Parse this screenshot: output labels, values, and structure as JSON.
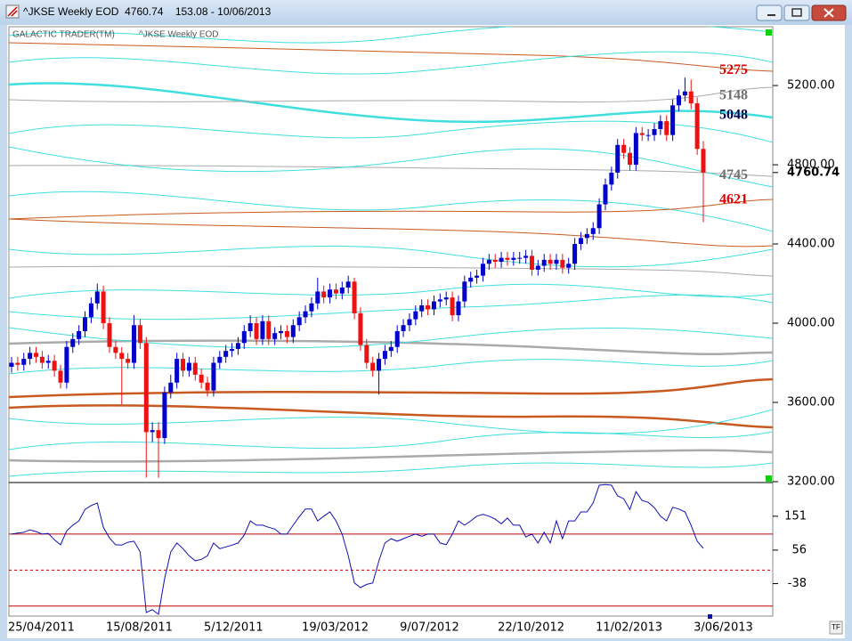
{
  "window": {
    "title": "^JKSE Weekly EOD  4760.74    153.08 - 10/06/2013",
    "button": "TF"
  },
  "chart_data": [
    {
      "type": "candlestick",
      "title": "GALACTIC TRADER(TM)",
      "subtitle": "^JKSE Weekly EOD",
      "categories": [
        "25/04/2011",
        null,
        null,
        null,
        null,
        null,
        null,
        null,
        null,
        null,
        null,
        null,
        null,
        null,
        null,
        null,
        "15/08/2011",
        null,
        null,
        null,
        null,
        null,
        null,
        null,
        null,
        null,
        null,
        null,
        null,
        null,
        null,
        null,
        "5/12/2011",
        null,
        null,
        null,
        null,
        null,
        null,
        null,
        null,
        null,
        null,
        null,
        null,
        null,
        null,
        null,
        "19/03/2012",
        null,
        null,
        null,
        null,
        null,
        null,
        null,
        null,
        null,
        null,
        null,
        null,
        null,
        null,
        null,
        "9/07/2012",
        null,
        null,
        null,
        null,
        null,
        null,
        null,
        null,
        null,
        null,
        null,
        null,
        null,
        null,
        null,
        "22/10/2012",
        null,
        null,
        null,
        null,
        null,
        null,
        null,
        null,
        null,
        null,
        null,
        null,
        null,
        null,
        null,
        "11/02/2013",
        null,
        null,
        null,
        null,
        null,
        null,
        null,
        null,
        null,
        null,
        null,
        null,
        null,
        null,
        null,
        "3/06/2013",
        null
      ],
      "open": [
        3780,
        3800,
        3790,
        3820,
        3850,
        3830,
        3800,
        3810,
        3760,
        3700,
        3880,
        3920,
        3960,
        4030,
        4100,
        4160,
        4000,
        3880,
        3850,
        3820,
        3800,
        3990,
        3900,
        3450,
        3460,
        3420,
        3650,
        3700,
        3820,
        3760,
        3800,
        3740,
        3700,
        3660,
        3800,
        3830,
        3860,
        3870,
        3900,
        3960,
        4000,
        3920,
        4010,
        3920,
        3950,
        3960,
        3930,
        3990,
        4030,
        4060,
        4100,
        4160,
        4130,
        4170,
        4150,
        4180,
        4210,
        4050,
        3890,
        3800,
        3760,
        3820,
        3860,
        3880,
        3960,
        3990,
        4020,
        4060,
        4090,
        4070,
        4110,
        4120,
        4130,
        4040,
        4110,
        4210,
        4230,
        4240,
        4300,
        4320,
        4310,
        4330,
        4320,
        4330,
        4330,
        4340,
        4270,
        4290,
        4320,
        4300,
        4320,
        4280,
        4300,
        4400,
        4430,
        4450,
        4480,
        4600,
        4700,
        4760,
        4900,
        4860,
        4800,
        4960,
        4950,
        4950,
        4980,
        5020,
        4950,
        5100,
        5150,
        5170,
        5110,
        4880
      ],
      "high": [
        3830,
        3830,
        3850,
        3880,
        3880,
        3860,
        3840,
        3840,
        3790,
        3910,
        3950,
        3990,
        4060,
        4130,
        4200,
        4190,
        4030,
        3910,
        3880,
        3850,
        4040,
        4020,
        3930,
        3500,
        3500,
        3680,
        3740,
        3850,
        3850,
        3830,
        3830,
        3770,
        3730,
        3830,
        3860,
        3890,
        3900,
        3930,
        3990,
        4040,
        4030,
        4040,
        4040,
        3980,
        3990,
        3990,
        4020,
        4060,
        4090,
        4130,
        4230,
        4190,
        4200,
        4200,
        4210,
        4240,
        4230,
        4080,
        3920,
        3830,
        3850,
        3890,
        3910,
        3990,
        4020,
        4050,
        4090,
        4120,
        4120,
        4140,
        4150,
        4160,
        4160,
        4140,
        4240,
        4260,
        4270,
        4330,
        4350,
        4350,
        4360,
        4360,
        4360,
        4360,
        4370,
        4370,
        4320,
        4350,
        4350,
        4350,
        4350,
        4330,
        4430,
        4460,
        4480,
        4510,
        4630,
        4730,
        4790,
        4930,
        4930,
        4890,
        4990,
        4990,
        4980,
        5010,
        5050,
        5050,
        5130,
        5180,
        5240,
        5230,
        5140,
        4920
      ],
      "low": [
        3750,
        3760,
        3760,
        3790,
        3800,
        3770,
        3770,
        3730,
        3670,
        3670,
        3850,
        3890,
        3930,
        4000,
        4070,
        3970,
        3850,
        3820,
        3590,
        3770,
        3770,
        3870,
        3220,
        3400,
        3220,
        3390,
        3620,
        3670,
        3730,
        3730,
        3710,
        3670,
        3630,
        3630,
        3770,
        3800,
        3830,
        3840,
        3870,
        3930,
        3890,
        3890,
        3890,
        3890,
        3920,
        3900,
        3900,
        3960,
        4000,
        4030,
        4070,
        4100,
        4100,
        4120,
        4120,
        4150,
        4020,
        3860,
        3770,
        3730,
        3640,
        3790,
        3830,
        3850,
        3930,
        3960,
        3990,
        4030,
        4040,
        4040,
        4080,
        4090,
        4010,
        4010,
        4080,
        4180,
        4200,
        4210,
        4270,
        4280,
        4280,
        4290,
        4290,
        4300,
        4300,
        4240,
        4240,
        4260,
        4270,
        4270,
        4250,
        4250,
        4270,
        4370,
        4400,
        4420,
        4450,
        4570,
        4670,
        4730,
        4830,
        4770,
        4770,
        4920,
        4920,
        4920,
        4950,
        4920,
        4920,
        5070,
        5120,
        5080,
        4850,
        4510
      ],
      "close": [
        3800,
        3790,
        3820,
        3850,
        3830,
        3800,
        3810,
        3760,
        3700,
        3880,
        3920,
        3960,
        4030,
        4100,
        4160,
        4000,
        3880,
        3850,
        3820,
        3800,
        3990,
        3900,
        3450,
        3460,
        3420,
        3650,
        3700,
        3820,
        3760,
        3800,
        3740,
        3700,
        3660,
        3800,
        3830,
        3860,
        3870,
        3900,
        3960,
        4000,
        3920,
        4010,
        3920,
        3950,
        3960,
        3930,
        3990,
        4030,
        4060,
        4100,
        4160,
        4130,
        4170,
        4150,
        4180,
        4210,
        4050,
        3890,
        3800,
        3760,
        3820,
        3860,
        3880,
        3960,
        3990,
        4020,
        4060,
        4090,
        4070,
        4110,
        4120,
        4130,
        4040,
        4110,
        4210,
        4230,
        4240,
        4300,
        4320,
        4310,
        4330,
        4320,
        4330,
        4330,
        4340,
        4270,
        4290,
        4320,
        4300,
        4320,
        4280,
        4300,
        4400,
        4430,
        4450,
        4480,
        4600,
        4700,
        4760,
        4900,
        4860,
        4800,
        4960,
        4950,
        4950,
        4980,
        5020,
        4950,
        5100,
        5150,
        5170,
        5110,
        4880,
        4760.74
      ],
      "up_color": "#0000cc",
      "down_color": "#ee1111",
      "ylim": [
        3200,
        5497
      ],
      "yticks": [
        {
          "value": 3200,
          "label": "3200.00"
        },
        {
          "value": 3600,
          "label": "3600.00"
        },
        {
          "value": 4000,
          "label": "4000.00"
        },
        {
          "value": 4400,
          "label": "4400.00"
        },
        {
          "value": 4800,
          "label": "4800.00"
        },
        {
          "value": 5200,
          "label": "5200.00"
        }
      ],
      "last_value": 4760.74,
      "levels": [
        {
          "value": 5275,
          "color": "#e00000"
        },
        {
          "value": 5148,
          "color": "#707070"
        },
        {
          "value": 5048,
          "color": "#000050"
        },
        {
          "value": 4745,
          "color": "#707070"
        },
        {
          "value": 4621,
          "color": "#e00000"
        }
      ]
    },
    {
      "type": "line",
      "color": "#1010b0",
      "values": [
        101,
        104,
        106,
        113,
        108,
        101,
        103,
        85,
        71,
        110,
        126,
        138,
        170,
        181,
        188,
        120,
        90,
        71,
        70,
        78,
        81,
        51,
        -119,
        -111,
        -124,
        -24,
        51,
        76,
        60,
        40,
        26,
        30,
        40,
        76,
        60,
        65,
        70,
        76,
        98,
        138,
        126,
        126,
        120,
        115,
        101,
        101,
        126,
        150,
        171,
        171,
        138,
        151,
        163,
        138,
        101,
        40,
        -36,
        -49,
        -40,
        -36,
        26,
        76,
        88,
        81,
        88,
        95,
        101,
        95,
        101,
        101,
        76,
        71,
        101,
        138,
        126,
        138,
        151,
        156,
        151,
        143,
        130,
        146,
        126,
        126,
        93,
        101,
        76,
        106,
        76,
        138,
        88,
        138,
        138,
        163,
        163,
        188,
        238,
        240,
        238,
        208,
        200,
        170,
        220,
        195,
        190,
        175,
        151,
        138,
        176,
        171,
        163,
        126,
        81,
        61
      ],
      "ylim": [
        -129,
        243
      ],
      "yticks": [
        151,
        56,
        -38
      ],
      "hlines": [
        101,
        0,
        -101
      ],
      "hline_color": "#c00000"
    }
  ]
}
